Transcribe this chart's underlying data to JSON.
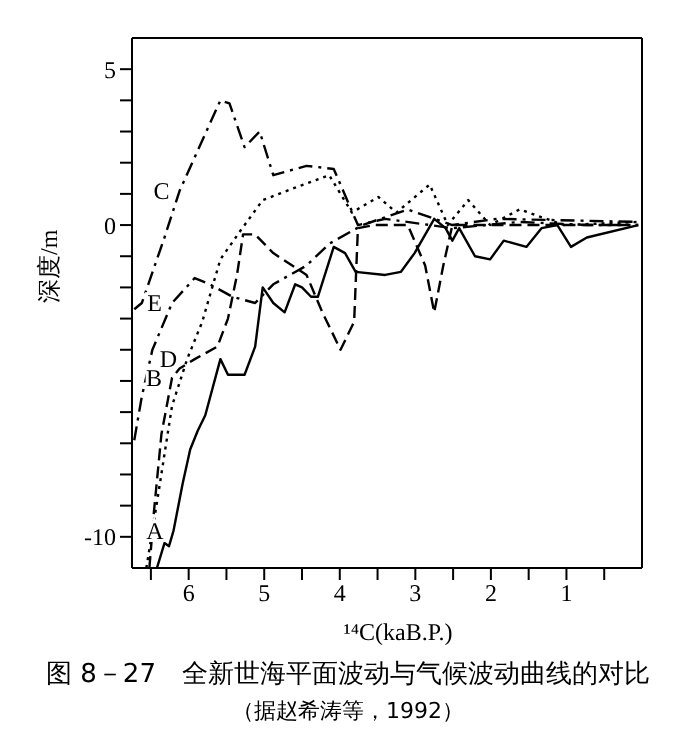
{
  "chart_data": {
    "type": "line",
    "title": "图 8－27　全新世海平面波动与气候波动曲线的对比",
    "subtitle": "（据赵希涛等，1992）",
    "xlabel": "¹⁴C(kaB.P.)",
    "ylabel": "深度/m",
    "xlim": [
      6.75,
      0
    ],
    "xticks": [
      {
        "value": 6.5,
        "label": null
      },
      6,
      {
        "value": 5.5,
        "label": null
      },
      5,
      {
        "value": 4.5,
        "label": null
      },
      4,
      {
        "value": 3.5,
        "label": null
      },
      3,
      {
        "value": 2.5,
        "label": null
      },
      2,
      {
        "value": 1.5,
        "label": null
      },
      1,
      {
        "value": 0.5,
        "label": null
      }
    ],
    "ylim": [
      -11,
      6
    ],
    "yticks": [
      -10,
      {
        "value": -9,
        "label": null
      },
      {
        "value": -8,
        "label": null
      },
      {
        "value": -7,
        "label": null
      },
      {
        "value": -6,
        "label": null
      },
      {
        "value": -5,
        "label": null
      },
      {
        "value": -4,
        "label": null
      },
      {
        "value": -3,
        "label": null
      },
      {
        "value": -2,
        "label": null
      },
      {
        "value": -1,
        "label": null
      },
      0,
      {
        "value": 1,
        "label": null
      },
      {
        "value": 2,
        "label": null
      },
      {
        "value": 3,
        "label": null
      },
      {
        "value": 4,
        "label": null
      },
      5
    ],
    "grid": false,
    "legend": false,
    "marker": "none",
    "series": [
      {
        "name": "A",
        "color": "#000000",
        "line_style": "solid",
        "x": [
          6.42,
          6.32,
          6.26,
          6.2,
          6.08,
          5.98,
          5.88,
          5.78,
          5.68,
          5.58,
          5.48,
          5.26,
          5.12,
          5.02,
          4.88,
          4.73,
          4.59,
          4.5,
          4.38,
          4.29,
          4.08,
          3.93,
          3.79,
          3.4,
          3.19,
          3.01,
          2.75,
          2.6,
          2.51,
          2.42,
          2.21,
          2.01,
          1.83,
          1.53,
          1.33,
          1.12,
          0.94,
          0.73,
          0.05
        ],
        "values": [
          -11,
          -10.2,
          -10.3,
          -9.8,
          -8.3,
          -7.2,
          -6.6,
          -6.1,
          -5.2,
          -4.3,
          -4.8,
          -4.8,
          -3.9,
          -2.0,
          -2.5,
          -2.8,
          -1.9,
          -2.0,
          -2.3,
          -2.3,
          -0.7,
          -0.9,
          -1.5,
          -1.6,
          -1.5,
          -0.9,
          0.2,
          -0.1,
          -0.5,
          -0.1,
          -1.0,
          -1.1,
          -0.5,
          -0.7,
          -0.1,
          0,
          -0.7,
          -0.4,
          0
        ]
      },
      {
        "name": "B",
        "color": "#000000",
        "line_style": "dashed",
        "x": [
          6.52,
          6.46,
          6.36,
          6.22,
          6.12,
          5.92,
          5.62,
          5.48,
          5.36,
          5.28,
          5.12,
          4.88,
          4.44,
          4.23,
          3.99,
          3.81,
          3.76,
          3.55,
          3.1,
          2.87,
          2.75,
          2.63,
          2.51,
          1.62,
          0.05
        ],
        "values": [
          -11.0,
          -9.2,
          -6.7,
          -4.9,
          -4.6,
          -4.3,
          -3.9,
          -3.0,
          -1.6,
          -0.3,
          -0.3,
          -0.9,
          -1.6,
          -2.8,
          -4.0,
          -3.1,
          -0.1,
          0,
          0,
          -1.3,
          -2.8,
          -1.3,
          0,
          0,
          0
        ]
      },
      {
        "name": "C",
        "color": "#000000",
        "line_style": "dashdot",
        "x": [
          6.72,
          6.62,
          6.32,
          6.12,
          5.58,
          5.46,
          5.26,
          5.06,
          4.88,
          4.44,
          4.08,
          3.76,
          3.4,
          2.51,
          1.62,
          0.73,
          0.05
        ],
        "values": [
          -2.7,
          -2.5,
          -0.4,
          1.1,
          4.0,
          3.9,
          2.5,
          3.0,
          1.6,
          1.9,
          1.8,
          0,
          0.2,
          -0.1,
          0.1,
          0,
          0
        ]
      },
      {
        "name": "D",
        "color": "#000000",
        "line_style": "dotted",
        "x": [
          6.56,
          6.42,
          6.22,
          6.02,
          5.82,
          5.58,
          5.32,
          5.02,
          4.59,
          4.14,
          3.84,
          3.49,
          3.25,
          2.81,
          2.57,
          2.3,
          2.01,
          1.62,
          1.03,
          0.05
        ],
        "values": [
          -11.0,
          -8.9,
          -5.8,
          -4.3,
          -3.1,
          -1.1,
          -0.2,
          0.8,
          1.2,
          1.6,
          0.4,
          0.9,
          0.4,
          1.3,
          0,
          0.8,
          0,
          0.5,
          0,
          0.1
        ]
      },
      {
        "name": "E",
        "color": "#000000",
        "line_style": "dashdot",
        "x": [
          6.72,
          6.62,
          6.48,
          6.22,
          5.92,
          5.72,
          5.42,
          5.12,
          4.88,
          4.44,
          4.14,
          3.7,
          3.1,
          2.51,
          1.92,
          0.05
        ],
        "values": [
          -6.9,
          -5.5,
          -4.0,
          -2.5,
          -1.7,
          -1.9,
          -2.3,
          -2.5,
          -1.9,
          -1.3,
          -0.6,
          0,
          0.5,
          0,
          0.2,
          0.1
        ]
      }
    ]
  }
}
